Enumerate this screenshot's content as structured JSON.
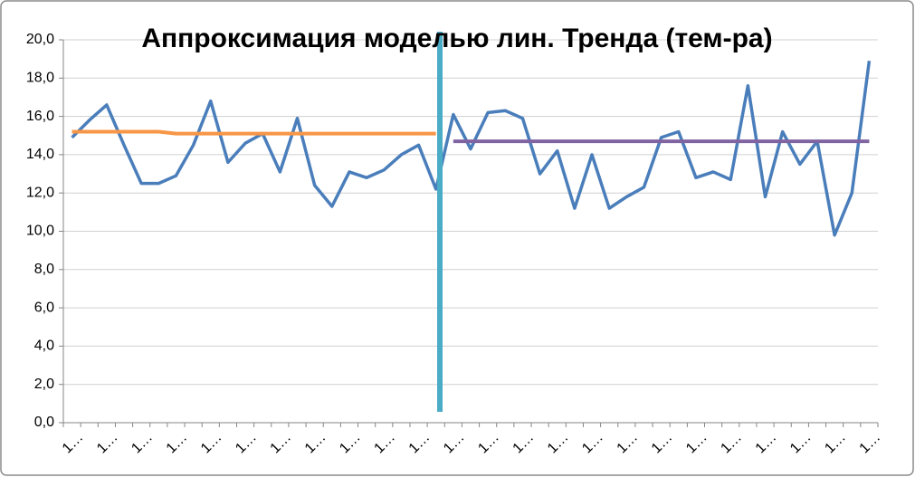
{
  "chart_data": {
    "type": "line",
    "title": "Аппроксимация моделью лин. Тренда (тем-ра)",
    "categories": [
      "1…",
      null,
      "1…",
      null,
      "1…",
      null,
      "1…",
      null,
      "1…",
      null,
      "1…",
      null,
      "1…",
      null,
      "1…",
      null,
      "1…",
      null,
      "1…",
      null,
      "1…",
      null,
      "1…",
      null,
      "1…",
      null,
      "1…",
      null,
      "1…",
      null,
      "1…",
      null,
      "1…",
      null,
      "1…",
      null,
      "1…",
      null,
      "1…",
      null,
      "1…",
      null,
      "1…",
      null,
      "1…",
      null,
      "1…"
    ],
    "series": [
      {
        "color": "#4a7ebb",
        "width": 3.5,
        "values": [
          14.9,
          15.8,
          16.6,
          14.5,
          12.5,
          12.5,
          12.9,
          14.5,
          16.8,
          13.6,
          14.6,
          15.1,
          13.1,
          15.9,
          12.4,
          11.3,
          13.1,
          12.8,
          13.2,
          14.0,
          14.5,
          12.2,
          16.1,
          14.3,
          16.2,
          16.3,
          15.9,
          13.0,
          14.2,
          11.2,
          14.0,
          11.2,
          11.8,
          12.3,
          14.9,
          15.2,
          12.8,
          13.1,
          12.7,
          17.6,
          11.8,
          15.2,
          13.5,
          14.7,
          9.8,
          12.0,
          18.9
        ]
      },
      {
        "color": "#f79646",
        "width": 4,
        "values": [
          15.2,
          15.2,
          15.2,
          15.2,
          15.2,
          15.2,
          15.1,
          15.1,
          15.1,
          15.1,
          15.1,
          15.1,
          15.1,
          15.1,
          15.1,
          15.1,
          15.1,
          15.1,
          15.1,
          15.1,
          15.1,
          15.1,
          null,
          null,
          null,
          null,
          null,
          null,
          null,
          null,
          null,
          null,
          null,
          null,
          null,
          null,
          null,
          null,
          null,
          null,
          null,
          null,
          null,
          null,
          null,
          null,
          null
        ]
      },
      {
        "color": "#8064a2",
        "width": 4,
        "values": [
          null,
          null,
          null,
          null,
          null,
          null,
          null,
          null,
          null,
          null,
          null,
          null,
          null,
          null,
          null,
          null,
          null,
          null,
          null,
          null,
          null,
          null,
          14.7,
          14.7,
          14.7,
          14.7,
          14.7,
          14.7,
          14.7,
          14.7,
          14.7,
          14.7,
          14.7,
          14.7,
          14.7,
          14.7,
          14.7,
          14.7,
          14.7,
          14.7,
          14.7,
          14.7,
          14.7,
          14.7,
          14.7,
          14.7,
          14.7
        ]
      }
    ],
    "ylim": [
      0,
      20
    ],
    "yticks": [
      {
        "value": 0,
        "label": "0,0"
      },
      {
        "value": 2,
        "label": "2,0"
      },
      {
        "value": 4,
        "label": "4,0"
      },
      {
        "value": 6,
        "label": "6,0"
      },
      {
        "value": 8,
        "label": "8,0"
      },
      {
        "value": 10,
        "label": "10,0"
      },
      {
        "value": 12,
        "label": "12,0"
      },
      {
        "value": 14,
        "label": "14,0"
      },
      {
        "value": 16,
        "label": "16,0"
      },
      {
        "value": 18,
        "label": "18,0"
      },
      {
        "value": 20,
        "label": "20,0"
      }
    ],
    "grid": true
  }
}
